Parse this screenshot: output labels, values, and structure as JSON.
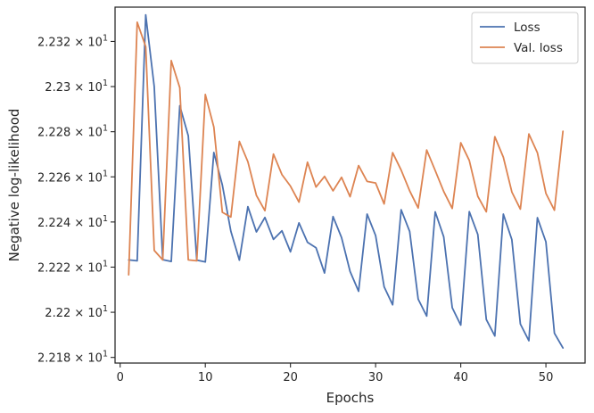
{
  "chart_data": {
    "type": "line",
    "title": "",
    "xlabel": "Epochs",
    "ylabel": "Negative log-likelihood",
    "xlim": [
      -0.6,
      54.6
    ],
    "ylim": [
      22.1775,
      22.3352
    ],
    "x_ticks": [
      0,
      10,
      20,
      30,
      40,
      50
    ],
    "y_ticks": [
      {
        "value": 22.18,
        "mantissa": "2.218",
        "times": "×",
        "base": "10",
        "exp": "1"
      },
      {
        "value": 22.2,
        "mantissa": "2.22",
        "times": "×",
        "base": "10",
        "exp": "1"
      },
      {
        "value": 22.22,
        "mantissa": "2.222",
        "times": "×",
        "base": "10",
        "exp": "1"
      },
      {
        "value": 22.24,
        "mantissa": "2.224",
        "times": "×",
        "base": "10",
        "exp": "1"
      },
      {
        "value": 22.26,
        "mantissa": "2.226",
        "times": "×",
        "base": "10",
        "exp": "1"
      },
      {
        "value": 22.28,
        "mantissa": "2.228",
        "times": "×",
        "base": "10",
        "exp": "1"
      },
      {
        "value": 22.3,
        "mantissa": "2.23",
        "times": "×",
        "base": "10",
        "exp": "1"
      },
      {
        "value": 22.32,
        "mantissa": "2.232",
        "times": "×",
        "base": "10",
        "exp": "1"
      }
    ],
    "grid": false,
    "legend_position": "top-right",
    "x": [
      1,
      2,
      3,
      4,
      5,
      6,
      7,
      8,
      9,
      10,
      11,
      12,
      13,
      14,
      15,
      16,
      17,
      18,
      19,
      20,
      21,
      22,
      23,
      24,
      25,
      26,
      27,
      28,
      29,
      30,
      31,
      32,
      33,
      34,
      35,
      36,
      37,
      38,
      39,
      40,
      41,
      42,
      43,
      44,
      45,
      46,
      47,
      48,
      49,
      50,
      51,
      52
    ],
    "series": [
      {
        "name": "Loss",
        "color": "#4c72b0",
        "values": [
          22.2232,
          22.2228,
          22.3318,
          22.3,
          22.2233,
          22.2225,
          22.2915,
          22.2782,
          22.2231,
          22.2223,
          22.2708,
          22.2564,
          22.2359,
          22.2231,
          22.2468,
          22.2356,
          22.242,
          22.2323,
          22.2361,
          22.2268,
          22.2396,
          22.231,
          22.2286,
          22.2174,
          22.2424,
          22.2331,
          22.2181,
          22.2093,
          22.2435,
          22.234,
          22.2113,
          22.2033,
          22.2454,
          22.2358,
          22.2058,
          22.1983,
          22.2445,
          22.2334,
          22.202,
          22.1943,
          22.2446,
          22.2345,
          22.1968,
          22.1895,
          22.2435,
          22.2322,
          22.1948,
          22.1874,
          22.2419,
          22.2312,
          22.1907,
          22.1842
        ]
      },
      {
        "name": "Val. loss",
        "color": "#dd8452",
        "values": [
          22.2166,
          22.3285,
          22.3177,
          22.2274,
          22.2232,
          22.3115,
          22.2995,
          22.2232,
          22.2228,
          22.2965,
          22.2821,
          22.2443,
          22.2422,
          22.2757,
          22.2667,
          22.2518,
          22.245,
          22.2701,
          22.261,
          22.2559,
          22.2488,
          22.2665,
          22.2555,
          22.2602,
          22.2538,
          22.2598,
          22.2512,
          22.265,
          22.258,
          22.2573,
          22.248,
          22.2707,
          22.263,
          22.2538,
          22.2462,
          22.2719,
          22.2628,
          22.2535,
          22.246,
          22.2751,
          22.2673,
          22.2514,
          22.2445,
          22.2778,
          22.2687,
          22.2533,
          22.2457,
          22.279,
          22.2707,
          22.2527,
          22.2452,
          22.2802
        ]
      }
    ]
  }
}
